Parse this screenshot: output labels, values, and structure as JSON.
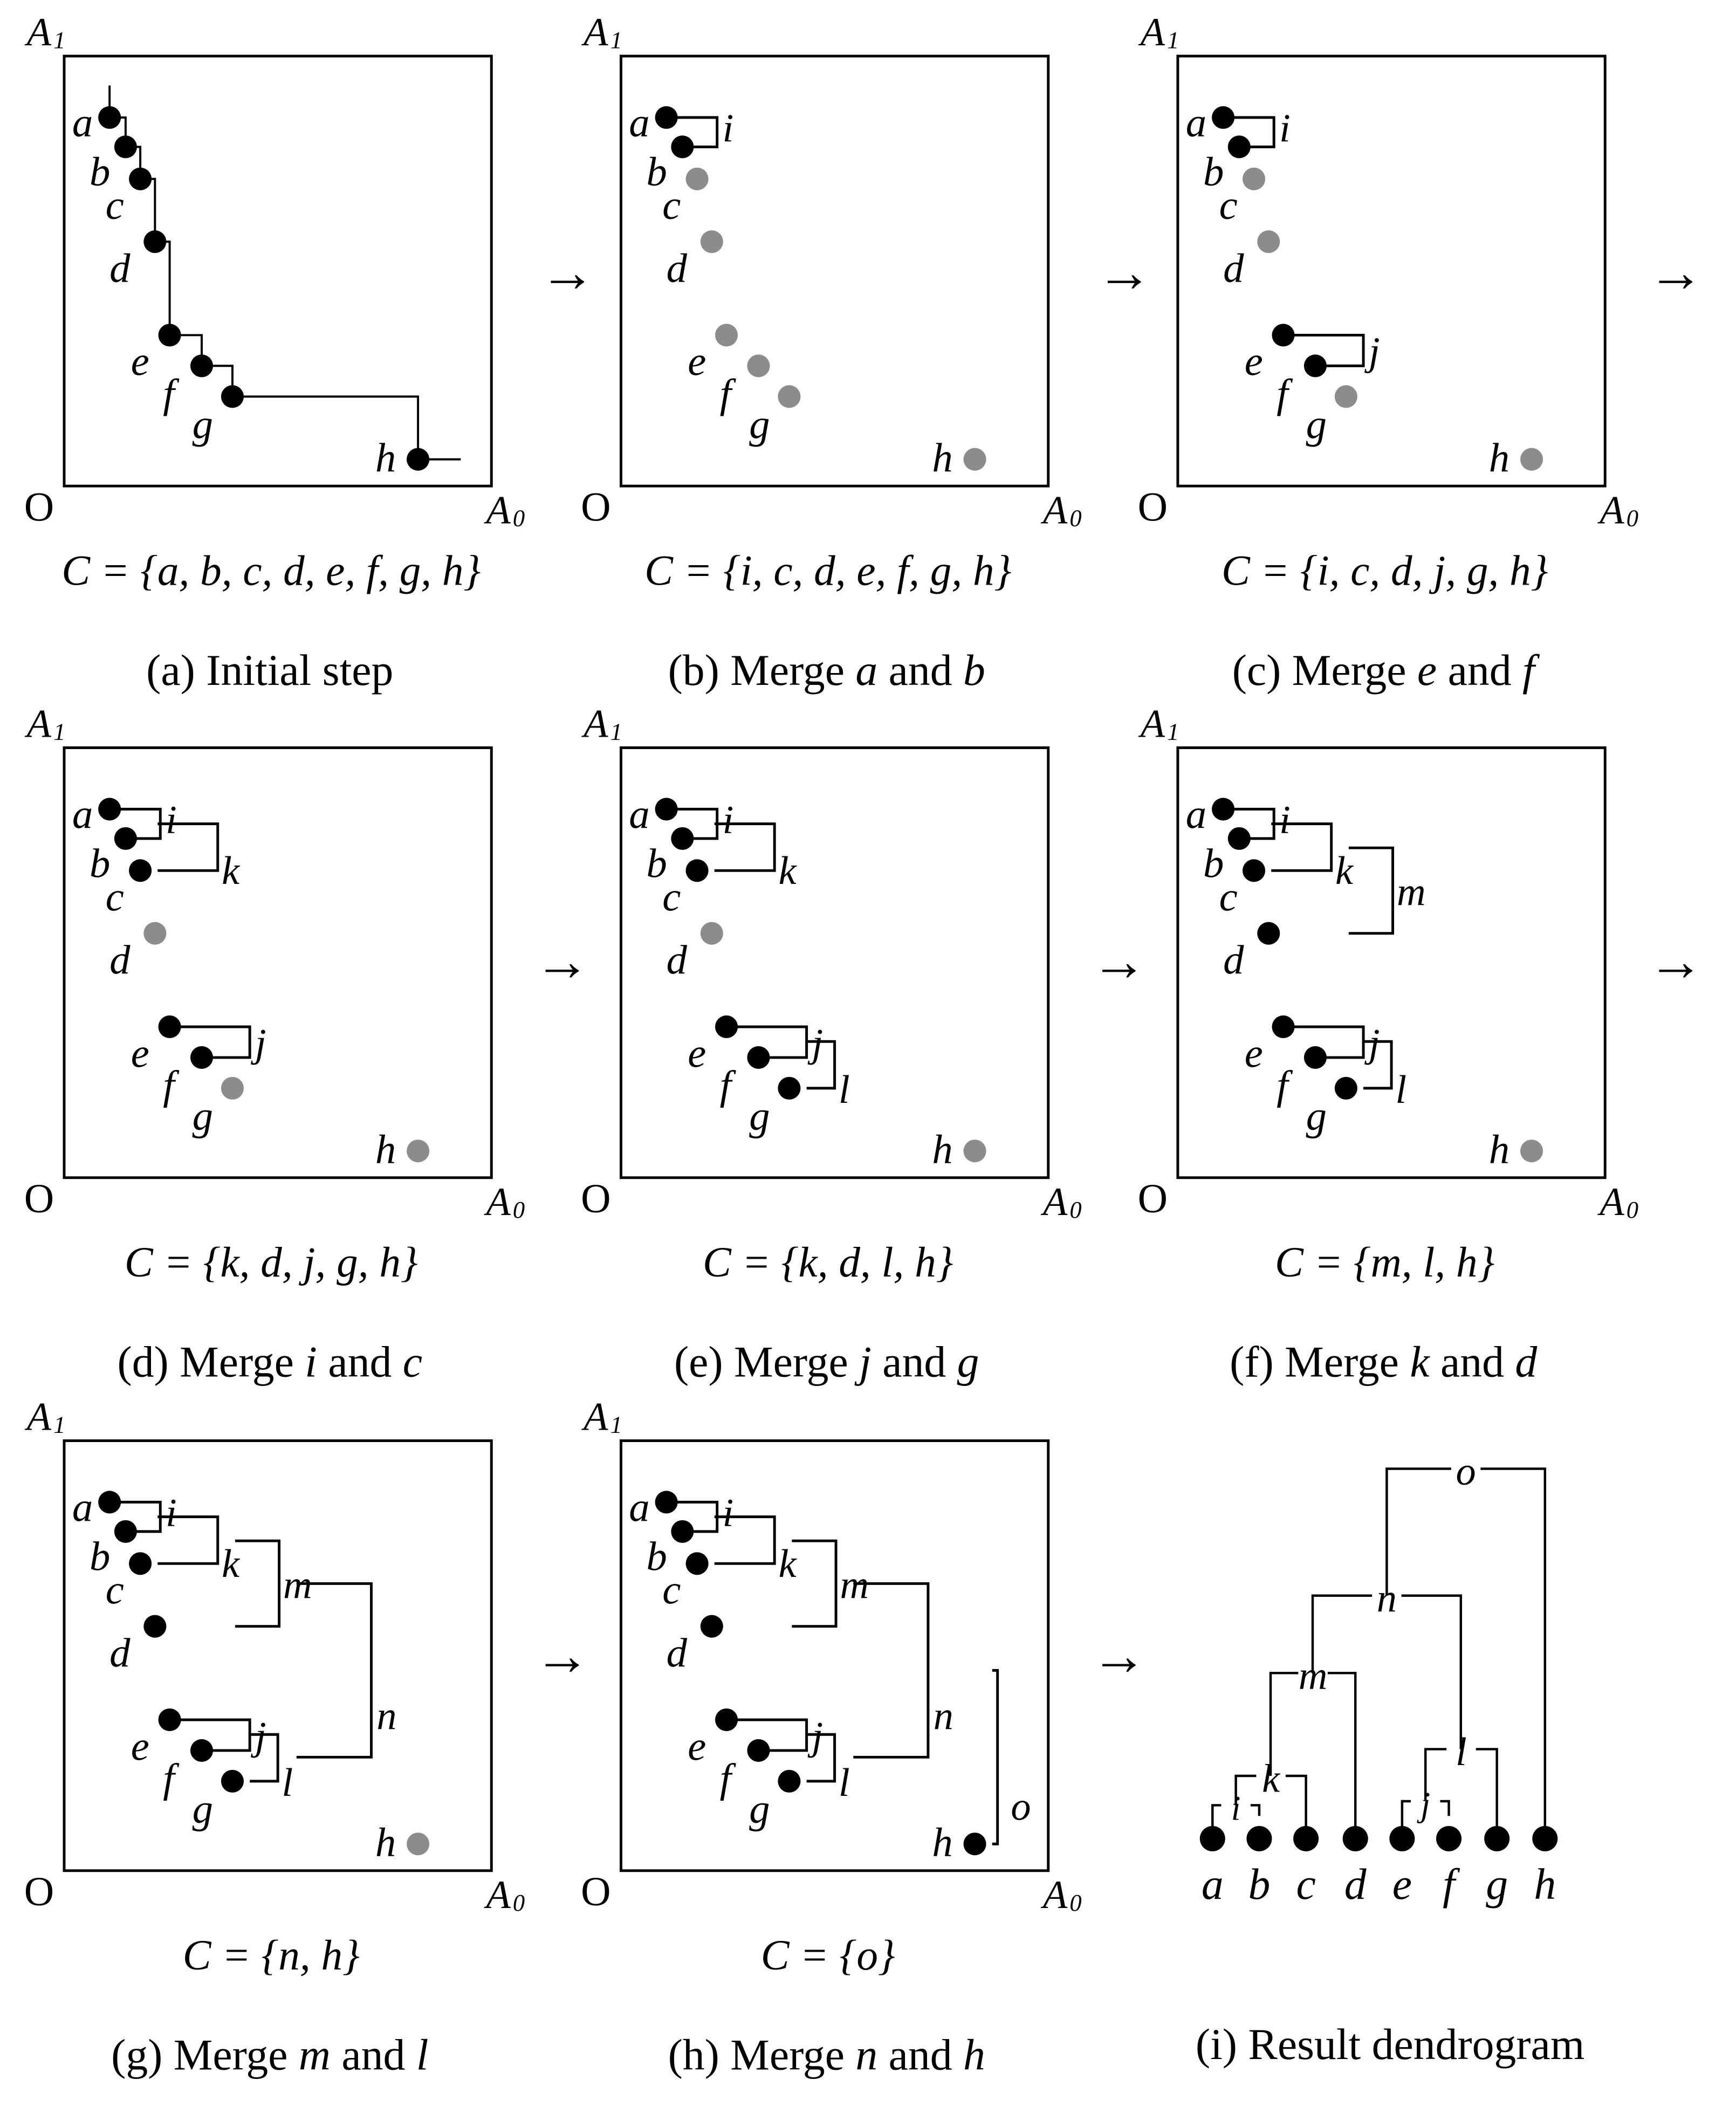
{
  "figure": {
    "axes": {
      "y_label": "A",
      "y_sub": "1",
      "x_label": "A",
      "x_sub": "0",
      "origin": "O"
    },
    "arrow": "→",
    "panels": [
      {
        "id": "a",
        "set": "C = {a, b, c, d, e, f, g, h}",
        "caption": {
          "pre": "(a) Initial step",
          "v1": "",
          "mid": "",
          "v2": ""
        }
      },
      {
        "id": "b",
        "set": "C = {i, c, d, e, f, g, h}",
        "caption": {
          "pre": "(b) Merge ",
          "v1": "a",
          "mid": " and ",
          "v2": "b"
        }
      },
      {
        "id": "c",
        "set": "C = {i, c, d, j, g, h}",
        "caption": {
          "pre": "(c) Merge ",
          "v1": "e",
          "mid": " and ",
          "v2": "f"
        }
      },
      {
        "id": "d",
        "set": "C = {k, d, j, g, h}",
        "caption": {
          "pre": "(d) Merge ",
          "v1": "i",
          "mid": " and ",
          "v2": "c"
        }
      },
      {
        "id": "e",
        "set": "C = {k, d, l, h}",
        "caption": {
          "pre": "(e) Merge ",
          "v1": "j",
          "mid": " and ",
          "v2": "g"
        }
      },
      {
        "id": "f",
        "set": "C = {m, l, h}",
        "caption": {
          "pre": "(f) Merge ",
          "v1": "k",
          "mid": " and ",
          "v2": "d"
        }
      },
      {
        "id": "g",
        "set": "C = {n, h}",
        "caption": {
          "pre": "(g) Merge ",
          "v1": "m",
          "mid": " and ",
          "v2": "l"
        }
      },
      {
        "id": "h",
        "set": "C = {o}",
        "caption": {
          "pre": "(h) Merge ",
          "v1": "n",
          "mid": " and ",
          "v2": "h"
        }
      }
    ],
    "points": [
      "a",
      "b",
      "c",
      "d",
      "e",
      "f",
      "g",
      "h"
    ],
    "clusters": [
      "i",
      "j",
      "k",
      "l",
      "m",
      "n",
      "o"
    ],
    "dendrogram": {
      "caption": "(i) Result dendrogram",
      "leaves": [
        "a",
        "b",
        "c",
        "d",
        "e",
        "f",
        "g",
        "h"
      ],
      "merges": [
        "i",
        "k",
        "m",
        "j",
        "l",
        "n",
        "o"
      ]
    },
    "colors": {
      "ink": "#000000",
      "active": "#000000",
      "pending": "#8c8c8c"
    }
  }
}
